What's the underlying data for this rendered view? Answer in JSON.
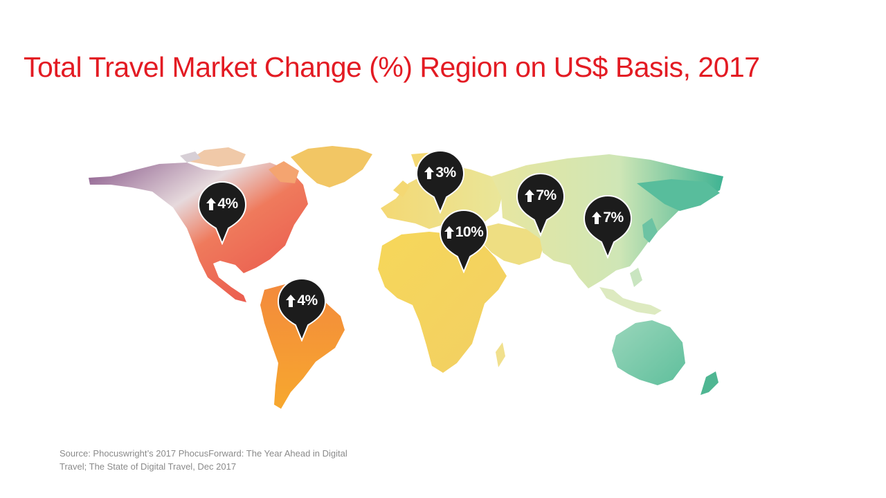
{
  "title": "Total Travel Market Change (%) Region on US$ Basis, 2017",
  "colors": {
    "title": "#e31b23",
    "pin": "#1c1c1c",
    "source_text": "#8a8a8a",
    "north_america": "#e9604f",
    "south_america": "#f6a336",
    "europe": "#f2df7c",
    "africa": "#f4d45e",
    "middle_east": "#f0dc78",
    "asia": "#d9e8b3",
    "east_asia": "#57be9e",
    "oceania": "#86cfb2"
  },
  "markers": [
    {
      "region": "North America",
      "direction": "up",
      "icon": "arrow-up-icon",
      "value": "4%"
    },
    {
      "region": "Latin America",
      "direction": "up",
      "icon": "arrow-up-icon",
      "value": "4%"
    },
    {
      "region": "Europe",
      "direction": "up",
      "icon": "arrow-up-icon",
      "value": "3%"
    },
    {
      "region": "Middle East",
      "direction": "up",
      "icon": "arrow-up-icon",
      "value": "10%"
    },
    {
      "region": "Asia",
      "direction": "up",
      "icon": "arrow-up-icon",
      "value": "7%"
    },
    {
      "region": "East Asia",
      "direction": "up",
      "icon": "arrow-up-icon",
      "value": "7%"
    }
  ],
  "source": {
    "line1": "Source: Phocuswright’s 2017 PhocusForward: The Year Ahead in Digital",
    "line2": "Travel; The State of Digital Travel, Dec 2017"
  }
}
